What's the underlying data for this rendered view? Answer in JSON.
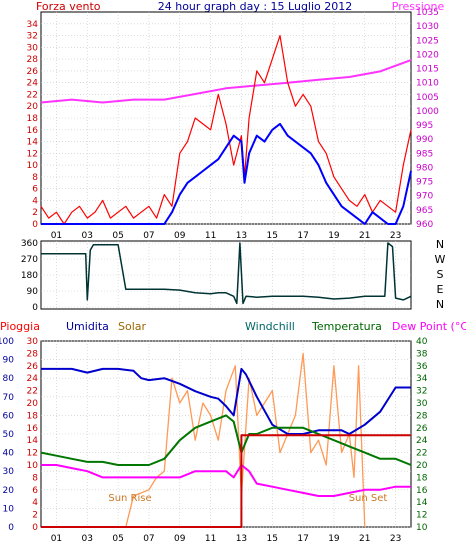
{
  "header": {
    "left_label": "Forza vento",
    "title": "24 hour graph day : 15 Luglio 2012",
    "right_label": "Pressione"
  },
  "panel2": {
    "letters": [
      "N",
      "W",
      "S",
      "E",
      "N"
    ]
  },
  "panel3": {
    "labels": {
      "pioggia": "Pioggia",
      "umidita": "Umidita",
      "solar": "Solar",
      "windchill": "Windchill",
      "temperatura": "Temperatura",
      "dewpoint": "Dew Point (°C)"
    },
    "annotations": {
      "sunrise": "Sun Rise",
      "sunset": "Sun Set"
    }
  },
  "colors": {
    "wind": "#ff0000",
    "gust_avg": "#0000ff",
    "pressure": "#ff33ff",
    "direction": "#003333",
    "humidity": "#0000cc",
    "solar": "#ff9955",
    "temperature": "#007700",
    "dewpoint": "#ff00ff",
    "rain": "#cc0000",
    "axis_red": "#cc0000",
    "axis_blue": "#000099",
    "axis_green": "#006600",
    "axis_magenta": "#cc00cc"
  },
  "chart_data": [
    {
      "type": "line",
      "panel": "wind-pressure",
      "x_ticks": [
        "01",
        "03",
        "05",
        "07",
        "09",
        "11",
        "13",
        "15",
        "17",
        "19",
        "21",
        "23"
      ],
      "xlim": [
        0,
        24
      ],
      "ylim_left": [
        0,
        36
      ],
      "left_ticks": [
        0,
        2,
        4,
        6,
        8,
        10,
        12,
        14,
        16,
        18,
        20,
        22,
        24,
        26,
        28,
        30,
        32,
        34
      ],
      "ylim_right": [
        960,
        1035
      ],
      "right_ticks": [
        960,
        965,
        970,
        975,
        980,
        985,
        990,
        995,
        1000,
        1005,
        1010,
        1015,
        1020,
        1025,
        1030,
        1035
      ],
      "series": [
        {
          "name": "Forza vento",
          "axis": "left",
          "x": [
            0,
            0.5,
            1,
            1.5,
            2,
            2.5,
            3,
            3.5,
            4,
            4.5,
            5,
            5.5,
            6,
            6.5,
            7,
            7.5,
            8,
            8.5,
            9,
            9.5,
            10,
            10.5,
            11,
            11.5,
            12,
            12.5,
            13,
            13.2,
            13.5,
            14,
            14.5,
            15,
            15.5,
            16,
            16.5,
            17,
            17.5,
            18,
            18.5,
            19,
            19.5,
            20,
            20.5,
            21,
            21.5,
            22,
            22.5,
            23,
            23.5,
            24
          ],
          "values": [
            3,
            1,
            2,
            0,
            2,
            3,
            1,
            2,
            4,
            1,
            2,
            3,
            1,
            2,
            3,
            1,
            5,
            3,
            12,
            14,
            18,
            17,
            16,
            22,
            17,
            10,
            15,
            8,
            18,
            26,
            24,
            28,
            32,
            24,
            20,
            22,
            20,
            14,
            12,
            8,
            6,
            4,
            3,
            5,
            2,
            4,
            3,
            2,
            10,
            16
          ]
        },
        {
          "name": "",
          "axis": "left",
          "x": [
            0,
            1,
            2,
            3,
            4,
            5,
            6,
            7,
            8,
            8.5,
            9,
            9.5,
            10,
            10.5,
            11,
            11.5,
            12,
            12.5,
            13,
            13.2,
            13.5,
            14,
            14.5,
            15,
            15.5,
            16,
            16.5,
            17,
            17.5,
            18,
            18.5,
            19,
            19.5,
            20,
            20.5,
            21,
            21.5,
            22,
            22.5,
            23,
            23.5,
            24
          ],
          "values": [
            0,
            0,
            0,
            0,
            0,
            0,
            0,
            0,
            0,
            2,
            5,
            7,
            8,
            9,
            10,
            11,
            13,
            15,
            14,
            7,
            12,
            15,
            14,
            16,
            17,
            15,
            14,
            13,
            12,
            10,
            7,
            5,
            3,
            2,
            1,
            0,
            2,
            1,
            0,
            0,
            3,
            9
          ]
        },
        {
          "name": "Pressione",
          "axis": "right",
          "x": [
            0,
            2,
            4,
            6,
            8,
            10,
            12,
            14,
            16,
            18,
            20,
            22,
            24
          ],
          "values": [
            1003,
            1004,
            1003,
            1004,
            1004,
            1006,
            1008,
            1009,
            1010,
            1011,
            1012,
            1014,
            1018
          ]
        }
      ]
    },
    {
      "type": "line",
      "panel": "wind-direction",
      "ylim": [
        0,
        360
      ],
      "y_ticks": [
        0,
        90,
        180,
        270,
        360
      ],
      "x_ticks": [
        "01",
        "03",
        "05",
        "07",
        "09",
        "11",
        "13",
        "15",
        "17",
        "19",
        "21",
        "23"
      ],
      "series": [
        {
          "name": "",
          "x": [
            0,
            1,
            2,
            2.9,
            3,
            3.2,
            3.4,
            4,
            5,
            5.5,
            6,
            7,
            8,
            9,
            10,
            11,
            11.5,
            12,
            12.5,
            12.7,
            12.9,
            13.1,
            13.3,
            14,
            15,
            16,
            17,
            18,
            19,
            20,
            21,
            22,
            22.3,
            22.5,
            22.8,
            23,
            23.5,
            24
          ],
          "values": [
            300,
            300,
            300,
            300,
            40,
            320,
            350,
            350,
            350,
            100,
            100,
            100,
            100,
            95,
            80,
            75,
            80,
            80,
            60,
            20,
            360,
            20,
            60,
            55,
            60,
            60,
            60,
            55,
            45,
            50,
            60,
            60,
            60,
            360,
            340,
            50,
            40,
            60
          ]
        }
      ]
    },
    {
      "type": "line",
      "panel": "humidity-temperature",
      "x_ticks": [
        "01",
        "03",
        "05",
        "07",
        "09",
        "11",
        "13",
        "15",
        "17",
        "19",
        "21",
        "23"
      ],
      "y_ticks_humidity": [
        0,
        10,
        20,
        30,
        40,
        50,
        60,
        70,
        80,
        90,
        100
      ],
      "y_ticks_rain": [
        0,
        2,
        4,
        6,
        8,
        10,
        12,
        14,
        16,
        18,
        20,
        22,
        24,
        26,
        28,
        30
      ],
      "y_ticks_temp": [
        10,
        12,
        14,
        16,
        18,
        20,
        22,
        24,
        26,
        28,
        30,
        32,
        34,
        36,
        38,
        40
      ],
      "series": [
        {
          "name": "Umidita",
          "axis": "humidity",
          "x": [
            0,
            1,
            2,
            3,
            4,
            5,
            6,
            6.5,
            7,
            8,
            9,
            10,
            11,
            11.5,
            12,
            12.5,
            13,
            13.3,
            14,
            15,
            16,
            17,
            18,
            19,
            19.5,
            20,
            21,
            22,
            23,
            24
          ],
          "values": [
            85,
            85,
            85,
            83,
            85,
            85,
            84,
            80,
            79,
            80,
            77,
            73,
            70,
            69,
            65,
            60,
            85,
            82,
            70,
            55,
            50,
            50,
            52,
            52,
            52,
            50,
            55,
            62,
            75,
            75
          ]
        },
        {
          "name": "Solar",
          "axis": "rain",
          "x": [
            5.5,
            6,
            7,
            7.5,
            8,
            8.5,
            9,
            9.5,
            10,
            10.5,
            11,
            11.5,
            12,
            12.3,
            12.6,
            13,
            13.5,
            14,
            14.5,
            15,
            15.5,
            16,
            16.5,
            17,
            17.5,
            18,
            18.5,
            19,
            19.5,
            20,
            20.3,
            20.6,
            21
          ],
          "values": [
            0,
            5,
            6,
            8,
            9,
            24,
            20,
            22,
            14,
            20,
            18,
            14,
            22,
            24,
            26,
            5,
            24,
            18,
            20,
            22,
            12,
            15,
            18,
            28,
            12,
            14,
            10,
            26,
            12,
            15,
            8,
            26,
            0
          ]
        },
        {
          "name": "Temperatura",
          "axis": "temp",
          "x": [
            0,
            1,
            2,
            3,
            4,
            5,
            6,
            7,
            8,
            9,
            10,
            11,
            12,
            12.5,
            13,
            13.5,
            14,
            15,
            16,
            17,
            18,
            19,
            20,
            21,
            22,
            23,
            24
          ],
          "values": [
            22,
            21.5,
            21,
            20.5,
            20.5,
            20,
            20,
            20,
            21,
            24,
            26,
            27,
            28,
            27,
            22,
            25,
            25,
            26,
            26,
            26,
            25,
            24,
            23,
            22,
            21,
            21,
            20
          ]
        },
        {
          "name": "Dew Point",
          "axis": "temp",
          "x": [
            0,
            1,
            2,
            3,
            4,
            5,
            6,
            7,
            8,
            9,
            10,
            11,
            12,
            12.5,
            13,
            13.5,
            14,
            15,
            16,
            17,
            18,
            19,
            20,
            21,
            22,
            23,
            24
          ],
          "values": [
            20,
            20,
            19.5,
            19,
            18,
            18,
            18,
            18,
            18,
            18,
            19,
            19,
            19,
            18,
            20,
            19,
            17,
            16.5,
            16,
            15.5,
            15,
            15,
            15.5,
            16,
            16,
            16.5,
            16.5
          ]
        },
        {
          "name": "Pioggia",
          "axis": "rain",
          "x": [
            0,
            12.5,
            12.5,
            13,
            13,
            24
          ],
          "values": [
            0,
            0,
            0,
            0,
            14.8,
            14.8
          ]
        }
      ],
      "annotations": [
        "Sun Rise",
        "Sun Set"
      ]
    }
  ]
}
